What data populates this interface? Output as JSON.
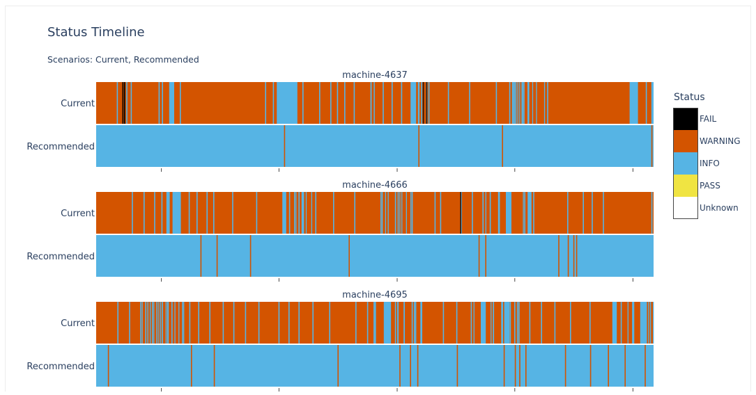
{
  "title": "Status Timeline",
  "subtitle": "Scenarios: Current, Recommended",
  "legend": {
    "title": "Status",
    "items": [
      {
        "label": "FAIL",
        "color": "#000000"
      },
      {
        "label": "WARNING",
        "color": "#d35400"
      },
      {
        "label": "INFO",
        "color": "#56b4e4"
      },
      {
        "label": "PASS",
        "color": "#f0e442"
      },
      {
        "label": "Unknown",
        "color": "#ffffff"
      }
    ]
  },
  "chart_data": {
    "type": "heatmap",
    "x_range": [
      0,
      100
    ],
    "status_colors": {
      "FAIL": "#000000",
      "WARNING": "#d35400",
      "INFO": "#56b4e4",
      "PASS": "#f0e442",
      "Unknown": "#ffffff"
    },
    "panels": [
      {
        "title": "machine-4637",
        "rows": [
          {
            "label": "Current",
            "base": "WARNING",
            "events": [
              {
                "x": 3.7,
                "status": "INFO"
              },
              {
                "x": 4.7,
                "status": "FAIL"
              },
              {
                "x": 5.0,
                "status": "FAIL"
              },
              {
                "x": 5.4,
                "status": "INFO"
              },
              {
                "x": 6.2,
                "status": "INFO"
              },
              {
                "x": 11.2,
                "status": "INFO"
              },
              {
                "x": 11.8,
                "status": "INFO"
              },
              {
                "x": 13.3,
                "status": "INFO"
              },
              {
                "x": 13.8,
                "status": "INFO"
              },
              {
                "x": 15.0,
                "status": "INFO"
              },
              {
                "x": 30.3,
                "status": "INFO"
              },
              {
                "x": 31.7,
                "status": "INFO"
              },
              {
                "x": 32.6,
                "status": "INFO"
              },
              {
                "x": 33.2,
                "status": "INFO"
              },
              {
                "x": 34.3,
                "status": "INFO"
              },
              {
                "x": 37.0,
                "status": "INFO"
              },
              {
                "x": 40.0,
                "status": "INFO"
              },
              {
                "x": 42.0,
                "status": "INFO"
              },
              {
                "x": 43.2,
                "status": "INFO"
              },
              {
                "x": 44.5,
                "status": "INFO"
              },
              {
                "x": 46.2,
                "status": "INFO"
              },
              {
                "x": 49.2,
                "status": "INFO"
              },
              {
                "x": 51.4,
                "status": "INFO"
              },
              {
                "x": 53.0,
                "status": "INFO"
              },
              {
                "x": 54.7,
                "status": "INFO"
              },
              {
                "x": 57.0,
                "status": "INFO"
              },
              {
                "x": 58.3,
                "status": "INFO"
              },
              {
                "x": 59.6,
                "status": "INFO"
              },
              {
                "x": 63.1,
                "status": "INFO"
              },
              {
                "x": 66.9,
                "status": "INFO"
              },
              {
                "x": 71.7,
                "status": "INFO"
              },
              {
                "x": 74.1,
                "status": "INFO"
              },
              {
                "x": 74.6,
                "status": "INFO"
              },
              {
                "x": 75.0,
                "status": "INFO"
              },
              {
                "x": 76.3,
                "status": "INFO"
              },
              {
                "x": 77.5,
                "status": "INFO"
              },
              {
                "x": 80.9,
                "status": "INFO"
              },
              {
                "x": 95.7,
                "status": "INFO"
              },
              {
                "x": 98.6,
                "status": "INFO"
              }
            ],
            "blocks": [
              {
                "x0": 13.1,
                "x1": 13.9,
                "status": "INFO"
              },
              {
                "x0": 32.4,
                "x1": 33.6,
                "status": "INFO"
              },
              {
                "x0": 33.4,
                "x1": 36.1,
                "status": "INFO"
              },
              {
                "x0": 56.4,
                "x1": 57.4,
                "status": "INFO"
              },
              {
                "x0": 95.8,
                "x1": 97.2,
                "status": "INFO"
              },
              {
                "x0": 99.6,
                "x1": 100,
                "status": "INFO"
              }
            ],
            "dense": [
              {
                "x0": 57.6,
                "x1": 59.4,
                "status": "INFO",
                "n": 6
              },
              {
                "x0": 74.0,
                "x1": 80.8,
                "status": "INFO",
                "n": 12
              },
              {
                "x0": 49.2,
                "x1": 51.2,
                "status": "INFO",
                "n": 3
              }
            ],
            "extras": [
              {
                "x": 58.6,
                "status": "FAIL"
              },
              {
                "x": 59.2,
                "status": "FAIL"
              }
            ]
          },
          {
            "label": "Recommended",
            "base": "INFO",
            "events": [
              {
                "x": 33.7,
                "status": "WARNING"
              },
              {
                "x": 57.8,
                "status": "WARNING"
              },
              {
                "x": 72.8,
                "status": "WARNING"
              },
              {
                "x": 99.6,
                "status": "WARNING"
              }
            ],
            "blocks": [],
            "dense": [],
            "extras": []
          }
        ]
      },
      {
        "title": "machine-4666",
        "rows": [
          {
            "label": "Current",
            "base": "WARNING",
            "events": [
              {
                "x": 6.4,
                "status": "INFO"
              },
              {
                "x": 8.5,
                "status": "INFO"
              },
              {
                "x": 10.4,
                "status": "INFO"
              },
              {
                "x": 11.7,
                "status": "INFO"
              },
              {
                "x": 12.9,
                "status": "INFO"
              },
              {
                "x": 16.6,
                "status": "INFO"
              },
              {
                "x": 18.0,
                "status": "INFO"
              },
              {
                "x": 19.8,
                "status": "INFO"
              },
              {
                "x": 21.0,
                "status": "INFO"
              },
              {
                "x": 24.4,
                "status": "INFO"
              },
              {
                "x": 28.7,
                "status": "INFO"
              },
              {
                "x": 34.6,
                "status": "INFO"
              },
              {
                "x": 35.5,
                "status": "INFO"
              },
              {
                "x": 36.3,
                "status": "INFO"
              },
              {
                "x": 37.0,
                "status": "INFO"
              },
              {
                "x": 39.3,
                "status": "INFO"
              },
              {
                "x": 42.5,
                "status": "INFO"
              },
              {
                "x": 46.3,
                "status": "INFO"
              },
              {
                "x": 51.0,
                "status": "INFO"
              },
              {
                "x": 53.6,
                "status": "INFO"
              },
              {
                "x": 56.6,
                "status": "INFO"
              },
              {
                "x": 60.7,
                "status": "INFO"
              },
              {
                "x": 61.7,
                "status": "INFO"
              },
              {
                "x": 65.4,
                "status": "INFO"
              },
              {
                "x": 67.4,
                "status": "INFO"
              },
              {
                "x": 69.3,
                "status": "INFO"
              },
              {
                "x": 70.6,
                "status": "INFO"
              },
              {
                "x": 72.1,
                "status": "INFO"
              },
              {
                "x": 76.8,
                "status": "INFO"
              },
              {
                "x": 78.4,
                "status": "INFO"
              },
              {
                "x": 84.5,
                "status": "INFO"
              },
              {
                "x": 87.3,
                "status": "INFO"
              },
              {
                "x": 88.9,
                "status": "INFO"
              },
              {
                "x": 90.9,
                "status": "INFO"
              },
              {
                "x": 99.6,
                "status": "INFO"
              }
            ],
            "blocks": [
              {
                "x0": 12.6,
                "x1": 13.2,
                "status": "INFO"
              },
              {
                "x0": 13.7,
                "x1": 15.2,
                "status": "INFO"
              },
              {
                "x0": 33.4,
                "x1": 34.1,
                "status": "INFO"
              },
              {
                "x0": 73.5,
                "x1": 74.5,
                "status": "INFO"
              },
              {
                "x0": 77.4,
                "x1": 78.1,
                "status": "INFO"
              }
            ],
            "dense": [
              {
                "x0": 50.8,
                "x1": 57.0,
                "status": "INFO",
                "n": 9
              },
              {
                "x0": 69.0,
                "x1": 76.9,
                "status": "INFO",
                "n": 8
              },
              {
                "x0": 35.0,
                "x1": 40.0,
                "status": "INFO",
                "n": 6
              }
            ],
            "extras": [
              {
                "x": 65.3,
                "status": "FAIL"
              }
            ]
          },
          {
            "label": "Recommended",
            "base": "INFO",
            "events": [
              {
                "x": 18.7,
                "status": "WARNING"
              },
              {
                "x": 21.6,
                "status": "WARNING"
              },
              {
                "x": 27.6,
                "status": "WARNING"
              },
              {
                "x": 45.3,
                "status": "WARNING"
              },
              {
                "x": 68.6,
                "status": "WARNING"
              },
              {
                "x": 69.8,
                "status": "WARNING"
              },
              {
                "x": 82.9,
                "status": "WARNING"
              },
              {
                "x": 84.6,
                "status": "WARNING"
              },
              {
                "x": 85.6,
                "status": "WARNING"
              },
              {
                "x": 86.1,
                "status": "WARNING"
              }
            ],
            "blocks": [],
            "dense": [],
            "extras": []
          }
        ]
      },
      {
        "title": "machine-4695",
        "rows": [
          {
            "label": "Current",
            "base": "WARNING",
            "events": [
              {
                "x": 3.8,
                "status": "INFO"
              },
              {
                "x": 5.9,
                "status": "INFO"
              },
              {
                "x": 7.9,
                "status": "INFO"
              },
              {
                "x": 8.8,
                "status": "INFO"
              },
              {
                "x": 10.0,
                "status": "INFO"
              },
              {
                "x": 10.8,
                "status": "INFO"
              },
              {
                "x": 11.8,
                "status": "INFO"
              },
              {
                "x": 12.7,
                "status": "INFO"
              },
              {
                "x": 13.5,
                "status": "INFO"
              },
              {
                "x": 15.4,
                "status": "INFO"
              },
              {
                "x": 16.7,
                "status": "INFO"
              },
              {
                "x": 18.3,
                "status": "INFO"
              },
              {
                "x": 20.3,
                "status": "INFO"
              },
              {
                "x": 22.7,
                "status": "INFO"
              },
              {
                "x": 24.6,
                "status": "INFO"
              },
              {
                "x": 26.7,
                "status": "INFO"
              },
              {
                "x": 29.1,
                "status": "INFO"
              },
              {
                "x": 32.7,
                "status": "INFO"
              },
              {
                "x": 34.5,
                "status": "INFO"
              },
              {
                "x": 36.3,
                "status": "INFO"
              },
              {
                "x": 38.8,
                "status": "INFO"
              },
              {
                "x": 41.8,
                "status": "INFO"
              },
              {
                "x": 46.5,
                "status": "INFO"
              },
              {
                "x": 48.6,
                "status": "INFO"
              },
              {
                "x": 50.0,
                "status": "INFO"
              },
              {
                "x": 53.6,
                "status": "INFO"
              },
              {
                "x": 56.6,
                "status": "INFO"
              },
              {
                "x": 58.3,
                "status": "INFO"
              },
              {
                "x": 62.2,
                "status": "INFO"
              },
              {
                "x": 64.6,
                "status": "INFO"
              },
              {
                "x": 67.2,
                "status": "INFO"
              },
              {
                "x": 69.6,
                "status": "INFO"
              },
              {
                "x": 72.8,
                "status": "INFO"
              },
              {
                "x": 75.0,
                "status": "INFO"
              },
              {
                "x": 77.7,
                "status": "INFO"
              },
              {
                "x": 79.8,
                "status": "INFO"
              },
              {
                "x": 82.2,
                "status": "INFO"
              },
              {
                "x": 85.0,
                "status": "INFO"
              },
              {
                "x": 88.5,
                "status": "INFO"
              },
              {
                "x": 94.1,
                "status": "INFO"
              },
              {
                "x": 97.6,
                "status": "INFO"
              }
            ],
            "blocks": [
              {
                "x0": 51.6,
                "x1": 52.8,
                "status": "INFO"
              },
              {
                "x0": 69.0,
                "x1": 69.9,
                "status": "INFO"
              },
              {
                "x0": 73.2,
                "x1": 74.2,
                "status": "INFO"
              },
              {
                "x0": 92.6,
                "x1": 93.4,
                "status": "INFO"
              },
              {
                "x0": 97.8,
                "x1": 98.8,
                "status": "INFO"
              }
            ],
            "dense": [
              {
                "x0": 8.0,
                "x1": 15.8,
                "status": "INFO",
                "n": 12
              },
              {
                "x0": 49.5,
                "x1": 60.0,
                "status": "INFO",
                "n": 14
              },
              {
                "x0": 66.0,
                "x1": 76.0,
                "status": "INFO",
                "n": 12
              },
              {
                "x0": 94.0,
                "x1": 100.0,
                "status": "INFO",
                "n": 8
              }
            ],
            "extras": []
          },
          {
            "label": "Recommended",
            "base": "INFO",
            "events": [
              {
                "x": 2.1,
                "status": "WARNING"
              },
              {
                "x": 17.0,
                "status": "WARNING"
              },
              {
                "x": 21.1,
                "status": "WARNING"
              },
              {
                "x": 43.3,
                "status": "WARNING"
              },
              {
                "x": 54.4,
                "status": "WARNING"
              },
              {
                "x": 56.3,
                "status": "WARNING"
              },
              {
                "x": 57.6,
                "status": "WARNING"
              },
              {
                "x": 64.7,
                "status": "WARNING"
              },
              {
                "x": 73.1,
                "status": "WARNING"
              },
              {
                "x": 75.1,
                "status": "WARNING"
              },
              {
                "x": 75.9,
                "status": "WARNING"
              },
              {
                "x": 77.0,
                "status": "WARNING"
              },
              {
                "x": 84.1,
                "status": "WARNING"
              },
              {
                "x": 88.6,
                "status": "WARNING"
              },
              {
                "x": 91.8,
                "status": "WARNING"
              },
              {
                "x": 94.8,
                "status": "WARNING"
              },
              {
                "x": 98.4,
                "status": "WARNING"
              }
            ],
            "blocks": [],
            "dense": [],
            "extras": []
          }
        ]
      }
    ]
  }
}
